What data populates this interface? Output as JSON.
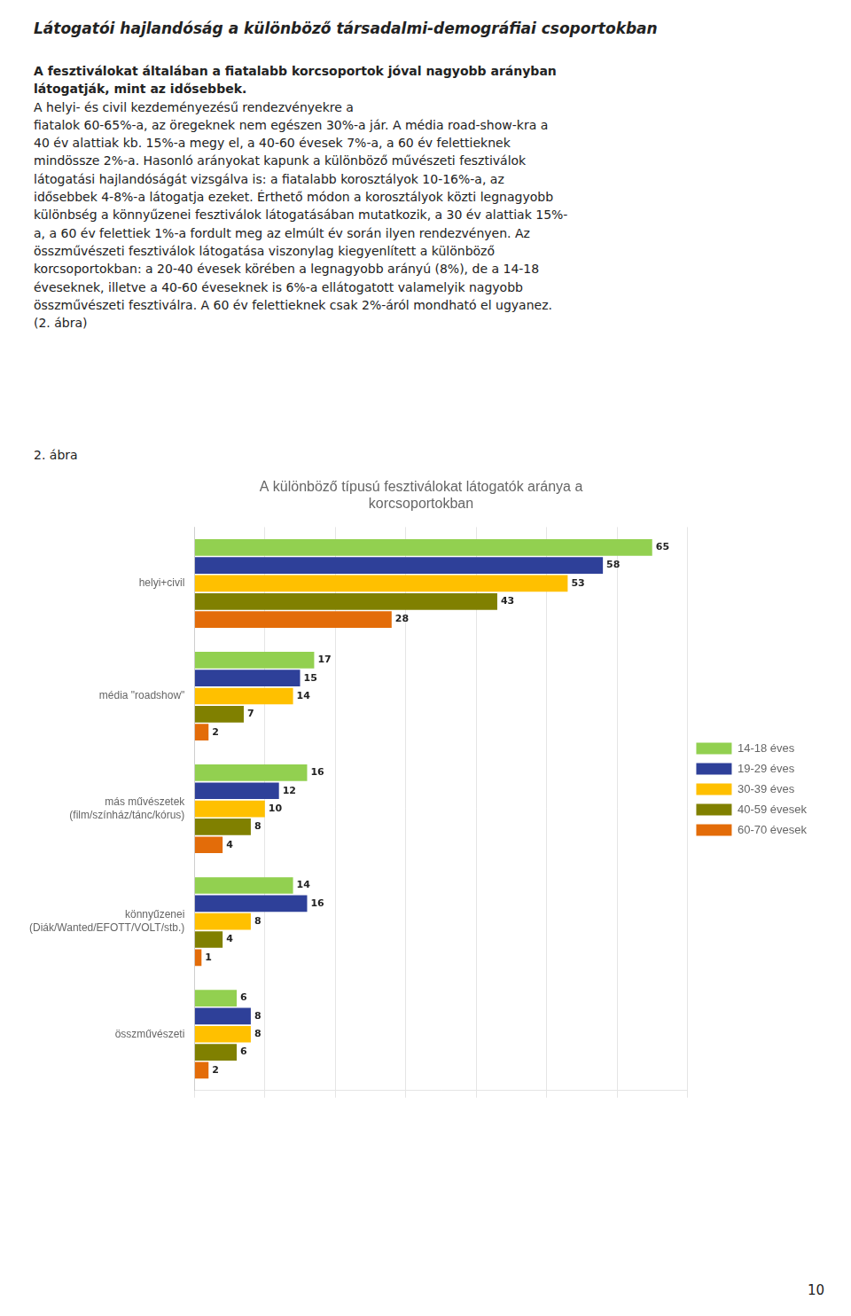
{
  "page_title": "Látogatói hajlandóság a különböző társadalmi-demográfiai csoportokban",
  "body_bold": [
    "A fesztiválokat általában a fiatalabb korcsoportok jóval nagyobb arányban",
    "látogatják, mint az idősebbek."
  ],
  "body": [
    "A helyi- és civil kezdeményezésű rendezvényekre a",
    "fiatalok 60-65%-a, az öregeknek nem egészen 30%-a jár. A média road-show-kra a",
    "40 év alattiak kb. 15%-a megy el, a 40-60 évesek 7%-a, a 60 év felettieknek",
    "mindössze 2%-a. Hasonló arányokat kapunk a különböző művészeti fesztiválok",
    "látogatási hajlandóságát vizsgálva is: a fiatalabb korosztályok 10-16%-a, az",
    "idősebbek 4-8%-a látogatja ezeket. Érthető módon a korosztályok közti legnagyobb",
    "különbség a könnyűzenei fesztiválok látogatásában mutatkozik, a 30 év alattiak 15%-",
    "a, a 60 év felettiek 1%-a fordult meg az elmúlt év során ilyen rendezvényen. Az",
    "összművészeti fesztiválok látogatása viszonylag kiegyenlített a különböző",
    "korcsoportokban: a 20-40 évesek körében a legnagyobb arányú (8%), de a 14-18",
    "éveseknek, illetve a 40-60 éveseknek is 6%-a ellátogatott valamelyik nagyobb",
    "összművészeti fesztiválra. A 60 év felettieknek csak 2%-áról mondható el ugyanez.",
    "(2. ábra)"
  ],
  "section_label": "2. ábra",
  "page_number": "10",
  "chart_data": {
    "type": "bar",
    "orientation": "horizontal",
    "title": "A különböző típusú fesztiválokat látogatók aránya a\nkorcsoportokban",
    "categories": [
      "helyi+civil",
      "média \"roadshow\"",
      "más művészetek\n(film/színház/tánc/kórus)",
      "könnyűzenei\n(Diák/Wanted/EFOTT/VOLT/stb.)",
      "összművészeti"
    ],
    "series": [
      {
        "name": "14-18 éves",
        "color": "#92d050",
        "values": [
          65,
          17,
          16,
          14,
          6
        ]
      },
      {
        "name": "19-29 éves",
        "color": "#2e4099",
        "values": [
          58,
          15,
          12,
          16,
          8
        ]
      },
      {
        "name": "30-39 éves",
        "color": "#ffc000",
        "values": [
          53,
          14,
          10,
          8,
          8
        ]
      },
      {
        "name": "40-59 évesek",
        "color": "#808000",
        "values": [
          43,
          7,
          8,
          4,
          6
        ]
      },
      {
        "name": "60-70 évesek",
        "color": "#e36c09",
        "values": [
          28,
          2,
          4,
          1,
          2
        ]
      }
    ],
    "xlim": [
      0,
      70
    ],
    "xticks": [
      0,
      10,
      20,
      30,
      40,
      50,
      60,
      70
    ],
    "grid": true,
    "legend": "right",
    "data_labels": true,
    "tick_labels": "y"
  }
}
